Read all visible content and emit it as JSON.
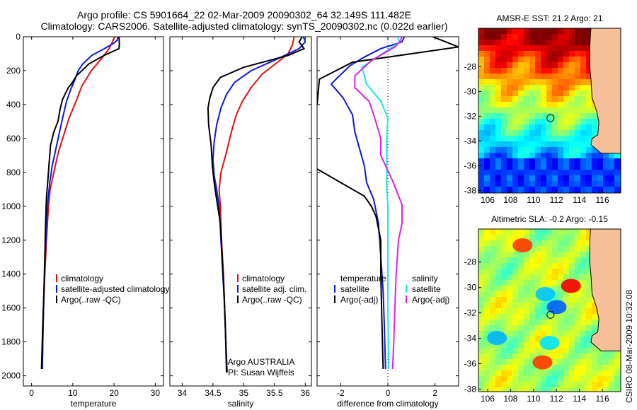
{
  "header": {
    "line1": "Argo profile: CS 5901664_22 02-Mar-2009 20090302_64 32.149S 111.482E",
    "line2": "Climatology: CARS2006. Satellite-adjusted climatology: synTS_20090302.nc (0.022d earlier)"
  },
  "side_label": "CSIRO 08-Mar-2009 10:32:08",
  "colors": {
    "clim": "#e01010",
    "sat": "#0a1bd6",
    "argo": "#000000",
    "sat_salinity": "#22e6e6",
    "argo_salinity": "#e020e0",
    "land": "#f6c09b"
  },
  "chart_data": [
    {
      "type": "line",
      "id": "temperature",
      "xlabel": "temperature",
      "xlim": [
        -2,
        32
      ],
      "xticks": [
        0,
        10,
        20,
        30
      ],
      "ylim": [
        0,
        2060
      ],
      "yticks": [
        0,
        200,
        400,
        600,
        800,
        1000,
        1200,
        1400,
        1600,
        1800,
        2000
      ],
      "yreversed": true,
      "legend": [
        "climatology",
        "satellite-adjusted climatology",
        "Argo(..raw -QC)"
      ],
      "series": [
        {
          "name": "climatology",
          "color": "#e01010",
          "points": [
            [
              20.2,
              0
            ],
            [
              19.6,
              30
            ],
            [
              18.8,
              70
            ],
            [
              16.9,
              130
            ],
            [
              14.5,
              200
            ],
            [
              12.2,
              290
            ],
            [
              10.8,
              380
            ],
            [
              9.1,
              480
            ],
            [
              7.8,
              580
            ],
            [
              6.5,
              680
            ],
            [
              5.4,
              800
            ],
            [
              4.5,
              900
            ],
            [
              4.1,
              1000
            ],
            [
              3.6,
              1200
            ],
            [
              3.2,
              1400
            ],
            [
              2.9,
              1600
            ],
            [
              2.7,
              1800
            ],
            [
              2.6,
              1960
            ]
          ]
        },
        {
          "name": "satellite-adjusted climatology",
          "color": "#0a1bd6",
          "points": [
            [
              20.9,
              0
            ],
            [
              20.8,
              20
            ],
            [
              19.8,
              40
            ],
            [
              17.7,
              70
            ],
            [
              14.6,
              110
            ],
            [
              12.4,
              160
            ],
            [
              11.3,
              200
            ],
            [
              10.4,
              260
            ],
            [
              9.5,
              310
            ],
            [
              8.5,
              380
            ],
            [
              7.7,
              460
            ],
            [
              6.8,
              560
            ],
            [
              5.9,
              660
            ],
            [
              5.0,
              760
            ],
            [
              4.4,
              860
            ],
            [
              4.0,
              960
            ],
            [
              3.6,
              1100
            ],
            [
              3.3,
              1300
            ],
            [
              3.0,
              1500
            ],
            [
              2.8,
              1700
            ],
            [
              2.6,
              1960
            ]
          ]
        },
        {
          "name": "Argo(..raw -QC)",
          "color": "#000000",
          "points": [
            [
              21.2,
              0
            ],
            [
              21.3,
              40
            ],
            [
              21.2,
              70
            ],
            [
              17.6,
              110
            ],
            [
              13.9,
              160
            ],
            [
              10.9,
              230
            ],
            [
              9.6,
              280
            ],
            [
              8.9,
              300
            ],
            [
              7.5,
              370
            ],
            [
              6.9,
              430
            ],
            [
              6.4,
              500
            ],
            [
              5.4,
              560
            ],
            [
              4.6,
              640
            ],
            [
              4.2,
              760
            ],
            [
              3.9,
              860
            ],
            [
              3.6,
              950
            ],
            [
              3.4,
              1100
            ],
            [
              3.2,
              1300
            ],
            [
              3.0,
              1500
            ],
            [
              2.7,
              1700
            ],
            [
              2.4,
              1960
            ]
          ]
        }
      ]
    },
    {
      "type": "line",
      "id": "salinity",
      "xlabel": "salinity",
      "xlim": [
        33.8,
        36.1
      ],
      "xticks": [
        34,
        34.5,
        35,
        35.5,
        36
      ],
      "ylim": [
        0,
        2060
      ],
      "yreversed": true,
      "legend": [
        "climatology",
        "satellite adj. clim.",
        "Argo(..raw -QC)"
      ],
      "annotation": [
        "Argo AUSTRALIA",
        "PI: Susan Wijffels"
      ],
      "series": [
        {
          "name": "climatology",
          "color": "#e01010",
          "points": [
            [
              35.82,
              0
            ],
            [
              35.79,
              50
            ],
            [
              35.72,
              100
            ],
            [
              35.55,
              150
            ],
            [
              35.3,
              220
            ],
            [
              35.12,
              300
            ],
            [
              34.98,
              380
            ],
            [
              34.88,
              460
            ],
            [
              34.8,
              560
            ],
            [
              34.72,
              680
            ],
            [
              34.63,
              800
            ],
            [
              34.6,
              900
            ],
            [
              34.62,
              1000
            ],
            [
              34.64,
              1200
            ],
            [
              34.67,
              1400
            ],
            [
              34.69,
              1600
            ],
            [
              34.71,
              1800
            ],
            [
              34.73,
              1980
            ]
          ]
        },
        {
          "name": "satellite adj. clim.",
          "color": "#0a1bd6",
          "points": [
            [
              35.97,
              0
            ],
            [
              36.0,
              30
            ],
            [
              35.9,
              70
            ],
            [
              35.55,
              130
            ],
            [
              35.12,
              200
            ],
            [
              34.85,
              270
            ],
            [
              34.72,
              340
            ],
            [
              34.63,
              420
            ],
            [
              34.56,
              520
            ],
            [
              34.52,
              620
            ],
            [
              34.5,
              720
            ],
            [
              34.52,
              820
            ],
            [
              34.56,
              900
            ],
            [
              34.6,
              1000
            ],
            [
              34.63,
              1200
            ],
            [
              34.66,
              1400
            ],
            [
              34.69,
              1600
            ],
            [
              34.71,
              1800
            ],
            [
              34.73,
              1980
            ]
          ]
        },
        {
          "name": "Argo(..raw -QC)",
          "color": "#000000",
          "points": [
            [
              35.95,
              0
            ],
            [
              35.9,
              30
            ],
            [
              35.98,
              70
            ],
            [
              35.72,
              110
            ],
            [
              35.0,
              180
            ],
            [
              34.62,
              240
            ],
            [
              34.5,
              300
            ],
            [
              34.45,
              360
            ],
            [
              34.42,
              420
            ],
            [
              34.43,
              520
            ],
            [
              34.47,
              640
            ],
            [
              34.49,
              760
            ],
            [
              34.52,
              860
            ],
            [
              34.56,
              960
            ],
            [
              34.62,
              1100
            ],
            [
              34.65,
              1300
            ],
            [
              34.68,
              1500
            ],
            [
              34.7,
              1700
            ],
            [
              34.72,
              1980
            ]
          ]
        }
      ]
    },
    {
      "type": "line",
      "id": "difference",
      "xlabel": "difference from climatology",
      "xlim": [
        -3,
        3
      ],
      "xticks": [
        -2,
        0,
        2
      ],
      "ylim": [
        0,
        2060
      ],
      "yreversed": true,
      "legend_left": [
        "temperature",
        "satellite",
        "Argo(-adj)"
      ],
      "legend_right": [
        "salinity",
        "satellite",
        "Argo(-adj)"
      ],
      "series": [
        {
          "name": "temperature satellite",
          "color": "#0a1bd6",
          "points": [
            [
              0.7,
              0
            ],
            [
              0.6,
              30
            ],
            [
              -0.3,
              70
            ],
            [
              -1.0,
              120
            ],
            [
              -1.6,
              170
            ],
            [
              -2.2,
              250
            ],
            [
              -2.4,
              280
            ],
            [
              -1.9,
              360
            ],
            [
              -1.5,
              460
            ],
            [
              -1.4,
              560
            ],
            [
              -1.2,
              660
            ],
            [
              -1.0,
              760
            ],
            [
              -0.9,
              860
            ],
            [
              -0.6,
              960
            ],
            [
              -0.4,
              1100
            ],
            [
              -0.3,
              1300
            ],
            [
              -0.2,
              1500
            ],
            [
              -0.15,
              1700
            ],
            [
              -0.1,
              1960
            ]
          ]
        },
        {
          "name": "temperature Argo(-adj)",
          "color": "#000000",
          "points": [
            [
              1.9,
              0
            ],
            [
              3.0,
              60
            ],
            [
              -1.5,
              150
            ],
            [
              -2.9,
              250
            ],
            [
              -3.0,
              400
            ]
          ]
        },
        {
          "name": "temperature Argo(-adj) deep",
          "color": "#000000",
          "points": [
            [
              -3.0,
              780
            ],
            [
              -2.0,
              860
            ],
            [
              -1.0,
              940
            ],
            [
              -0.7,
              1000
            ],
            [
              -0.5,
              1060
            ],
            [
              -0.3,
              1200
            ],
            [
              -0.3,
              1400
            ],
            [
              -0.25,
              1700
            ],
            [
              -0.2,
              1960
            ]
          ]
        },
        {
          "name": "salinity satellite",
          "color": "#22e6e6",
          "points": [
            [
              0.4,
              0
            ],
            [
              0.5,
              30
            ],
            [
              0.2,
              60
            ],
            [
              -1.1,
              180
            ],
            [
              -0.9,
              280
            ],
            [
              -0.3,
              380
            ],
            [
              0.0,
              480
            ],
            [
              -0.05,
              600
            ],
            [
              -0.05,
              760
            ],
            [
              -0.05,
              880
            ],
            [
              0.0,
              1000
            ],
            [
              0.0,
              1200
            ],
            [
              0.0,
              1400
            ],
            [
              0.0,
              1600
            ],
            [
              0.02,
              1800
            ],
            [
              0.03,
              1960
            ]
          ]
        },
        {
          "name": "salinity Argo(-adj)",
          "color": "#e020e0",
          "points": [
            [
              0.6,
              0
            ],
            [
              0.5,
              30
            ],
            [
              0.3,
              60
            ],
            [
              -0.7,
              140
            ],
            [
              -1.4,
              230
            ],
            [
              -1.4,
              300
            ],
            [
              -0.8,
              380
            ],
            [
              -0.6,
              460
            ],
            [
              -0.3,
              600
            ],
            [
              -0.3,
              700
            ],
            [
              0.2,
              850
            ],
            [
              0.6,
              990
            ],
            [
              0.6,
              1100
            ],
            [
              0.45,
              1200
            ],
            [
              0.35,
              1400
            ],
            [
              0.3,
              1600
            ],
            [
              0.25,
              1800
            ],
            [
              0.2,
              1960
            ]
          ]
        }
      ]
    }
  ],
  "maps": [
    {
      "id": "sst_map",
      "type": "heatmap",
      "title": "AMSR-E SST: 21.2 Argo: 21",
      "xlim": [
        105.2,
        117.6
      ],
      "ylim": [
        -38.2,
        -24.9
      ],
      "xticks": [
        106,
        108,
        110,
        112,
        114,
        116
      ],
      "yticks": [
        -28,
        -30,
        -32,
        -34,
        -36,
        -38
      ],
      "marker": [
        111.48,
        -32.15
      ]
    },
    {
      "id": "sla_map",
      "type": "heatmap",
      "title": "Altimetric SLA: -0.2 Argo: -0.15",
      "xlim": [
        105.2,
        117.6
      ],
      "ylim": [
        -38.2,
        -25.4
      ],
      "xticks": [
        106,
        108,
        110,
        112,
        114,
        116
      ],
      "yticks": [
        -28,
        -30,
        -32,
        -34,
        -36,
        -38
      ],
      "marker": [
        111.48,
        -32.15
      ]
    }
  ]
}
